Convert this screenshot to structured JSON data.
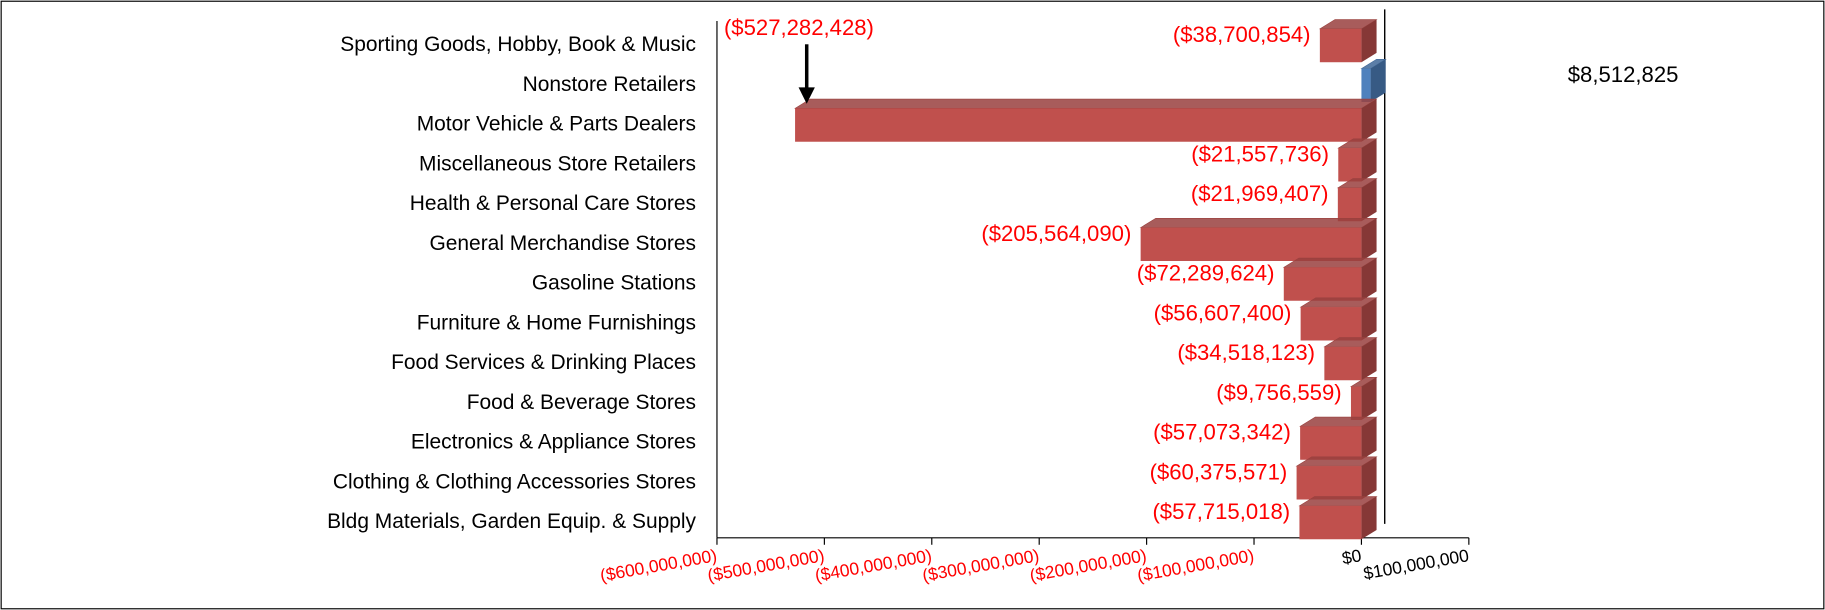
{
  "chart_data": {
    "type": "bar",
    "orientation": "horizontal",
    "categories": [
      "Sporting Goods, Hobby, Book & Music",
      "Nonstore Retailers",
      "Motor Vehicle & Parts Dealers",
      "Miscellaneous Store Retailers",
      "Health & Personal Care Stores",
      "General Merchandise Stores",
      "Gasoline Stations",
      "Furniture & Home Furnishings",
      "Food Services & Drinking Places",
      "Food & Beverage Stores",
      "Electronics & Appliance Stores",
      "Clothing & Clothing Accessories Stores",
      "Bldg Materials, Garden Equip. & Supply"
    ],
    "values": [
      -38700854,
      8512825,
      -527282428,
      -21557736,
      -21969407,
      -205564090,
      -72289624,
      -56607400,
      -34518123,
      -9756559,
      -57073342,
      -60375571,
      -57715018
    ],
    "value_labels": [
      "($38,700,854)",
      "$8,512,825",
      "($527,282,428)",
      "($21,557,736)",
      "($21,969,407)",
      "($205,564,090)",
      "($72,289,624)",
      "($56,607,400)",
      "($34,518,123)",
      "($9,756,559)",
      "($57,073,342)",
      "($60,375,571)",
      "($57,715,018)"
    ],
    "color": "#c0504d",
    "positive_color": "#4f81bd",
    "negative_label_color": "#ff0000",
    "positive_label_color": "#000000",
    "xlim": [
      -600000000,
      100000000
    ],
    "xticks": [
      {
        "value": -600000000,
        "label": "($600,000,000)"
      },
      {
        "value": -500000000,
        "label": "($500,000,000)"
      },
      {
        "value": -400000000,
        "label": "($400,000,000)"
      },
      {
        "value": -300000000,
        "label": "($300,000,000)"
      },
      {
        "value": -200000000,
        "label": "($200,000,000)"
      },
      {
        "value": -100000000,
        "label": "($100,000,000)"
      },
      {
        "value": 0,
        "label": "$0"
      },
      {
        "value": 100000000,
        "label": "$100,000,000"
      }
    ]
  }
}
